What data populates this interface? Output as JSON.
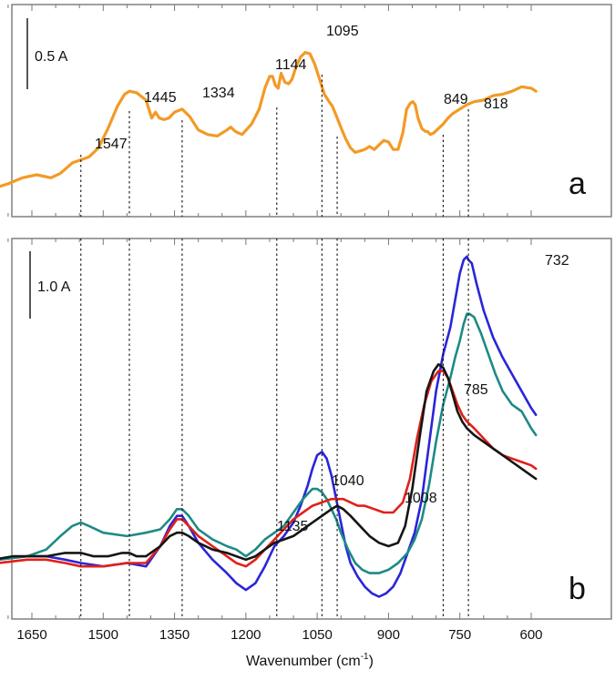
{
  "chart_data": [
    {
      "type": "line",
      "panel_letter": "a",
      "scale_bar_label": "0.5 A",
      "xlim": [
        1780,
        590
      ],
      "ylim": [
        0,
        1
      ],
      "x_reversed": true,
      "series": [
        {
          "color": "#f29a26",
          "x": [
            1780,
            1740,
            1700,
            1670,
            1640,
            1610,
            1590,
            1565,
            1547,
            1530,
            1510,
            1490,
            1470,
            1455,
            1445,
            1430,
            1410,
            1398,
            1390,
            1382,
            1372,
            1362,
            1350,
            1334,
            1318,
            1300,
            1280,
            1260,
            1240,
            1232,
            1222,
            1208,
            1188,
            1172,
            1160,
            1150,
            1144,
            1138,
            1132,
            1126,
            1118,
            1110,
            1103,
            1095,
            1085,
            1075,
            1065,
            1055,
            1045,
            1035,
            1025,
            1018,
            1008,
            998,
            990,
            980,
            970,
            960,
            950,
            940,
            930,
            920,
            910,
            900,
            890,
            880,
            870,
            862,
            854,
            849,
            844,
            838,
            830,
            822,
            818,
            812,
            805,
            795,
            785,
            775,
            765,
            755,
            745,
            735,
            720,
            700,
            680,
            660,
            640,
            620,
            600,
            590
          ],
          "y": [
            0.02,
            0.04,
            0.08,
            0.12,
            0.14,
            0.12,
            0.15,
            0.22,
            0.24,
            0.26,
            0.32,
            0.45,
            0.6,
            0.68,
            0.7,
            0.69,
            0.64,
            0.52,
            0.56,
            0.52,
            0.51,
            0.52,
            0.56,
            0.58,
            0.53,
            0.44,
            0.41,
            0.4,
            0.44,
            0.46,
            0.43,
            0.41,
            0.48,
            0.58,
            0.72,
            0.8,
            0.8,
            0.74,
            0.72,
            0.82,
            0.76,
            0.75,
            0.78,
            0.86,
            0.93,
            0.96,
            0.95,
            0.88,
            0.78,
            0.68,
            0.63,
            0.6,
            0.52,
            0.44,
            0.38,
            0.32,
            0.29,
            0.3,
            0.31,
            0.33,
            0.31,
            0.34,
            0.37,
            0.36,
            0.31,
            0.31,
            0.42,
            0.58,
            0.62,
            0.63,
            0.61,
            0.52,
            0.45,
            0.43,
            0.43,
            0.41,
            0.42,
            0.45,
            0.48,
            0.52,
            0.55,
            0.57,
            0.59,
            0.61,
            0.63,
            0.64,
            0.67,
            0.68,
            0.7,
            0.73,
            0.72,
            0.7
          ]
        }
      ],
      "annotations": [
        {
          "text": "1547",
          "x": 1547,
          "y": 0.24
        },
        {
          "text": "1445",
          "x": 1445,
          "y": 0.7
        },
        {
          "text": "1334",
          "x": 1334,
          "y": 0.58
        },
        {
          "text": "1144",
          "x": 1144,
          "y": 0.8
        },
        {
          "text": "1095",
          "x": 1095,
          "y": 0.96
        },
        {
          "text": "849",
          "x": 849,
          "y": 0.63
        },
        {
          "text": "818",
          "x": 818,
          "y": 0.43
        }
      ]
    },
    {
      "type": "line",
      "panel_letter": "b",
      "scale_bar_label": "1.0 A",
      "xlabel": "Wavenumber (cm",
      "xlabel_sup": "-1",
      "xlabel_close": ")",
      "xlim": [
        1780,
        590
      ],
      "ylim": [
        0,
        1
      ],
      "x_reversed": true,
      "x_ticks": [
        1650,
        1500,
        1350,
        1200,
        1050,
        900,
        750,
        600
      ],
      "x_tick_labels": [
        "1650",
        "1500",
        "1350",
        "1200",
        "1050",
        "900",
        "750",
        "600"
      ],
      "series": [
        {
          "color": "#2a25d8",
          "x": [
            1780,
            1720,
            1660,
            1620,
            1580,
            1547,
            1500,
            1450,
            1410,
            1380,
            1360,
            1345,
            1334,
            1320,
            1300,
            1270,
            1240,
            1220,
            1200,
            1180,
            1160,
            1140,
            1120,
            1100,
            1085,
            1070,
            1060,
            1050,
            1040,
            1030,
            1020,
            1010,
            1000,
            990,
            980,
            965,
            950,
            935,
            920,
            905,
            890,
            875,
            860,
            845,
            830,
            815,
            800,
            785,
            770,
            760,
            750,
            742,
            735,
            732,
            725,
            715,
            700,
            680,
            660,
            640,
            620,
            600,
            590
          ],
          "y": [
            0.05,
            0.06,
            0.07,
            0.07,
            0.06,
            0.05,
            0.04,
            0.05,
            0.04,
            0.1,
            0.16,
            0.19,
            0.19,
            0.16,
            0.11,
            0.06,
            0.02,
            -0.01,
            -0.03,
            -0.01,
            0.04,
            0.1,
            0.13,
            0.17,
            0.22,
            0.28,
            0.33,
            0.37,
            0.38,
            0.36,
            0.31,
            0.24,
            0.17,
            0.1,
            0.05,
            0.01,
            -0.02,
            -0.04,
            -0.05,
            -0.04,
            -0.02,
            0.02,
            0.08,
            0.14,
            0.24,
            0.4,
            0.56,
            0.67,
            0.75,
            0.83,
            0.91,
            0.95,
            0.96,
            0.95,
            0.94,
            0.88,
            0.8,
            0.72,
            0.66,
            0.61,
            0.56,
            0.51,
            0.49
          ]
        },
        {
          "color": "#1e8a86",
          "x": [
            1780,
            1720,
            1660,
            1620,
            1590,
            1565,
            1547,
            1530,
            1500,
            1450,
            1410,
            1380,
            1360,
            1345,
            1334,
            1320,
            1300,
            1270,
            1240,
            1220,
            1200,
            1180,
            1160,
            1140,
            1120,
            1100,
            1080,
            1060,
            1050,
            1040,
            1030,
            1020,
            1010,
            1000,
            985,
            970,
            955,
            940,
            920,
            900,
            880,
            860,
            845,
            830,
            815,
            800,
            785,
            770,
            760,
            750,
            742,
            735,
            730,
            720,
            705,
            690,
            675,
            660,
            640,
            620,
            600,
            590
          ],
          "y": [
            0.05,
            0.06,
            0.07,
            0.09,
            0.13,
            0.16,
            0.17,
            0.16,
            0.14,
            0.13,
            0.14,
            0.15,
            0.18,
            0.21,
            0.21,
            0.19,
            0.15,
            0.12,
            0.1,
            0.09,
            0.07,
            0.09,
            0.12,
            0.14,
            0.16,
            0.2,
            0.24,
            0.27,
            0.27,
            0.26,
            0.24,
            0.21,
            0.18,
            0.14,
            0.09,
            0.05,
            0.03,
            0.02,
            0.02,
            0.03,
            0.05,
            0.08,
            0.12,
            0.18,
            0.28,
            0.41,
            0.52,
            0.6,
            0.66,
            0.71,
            0.76,
            0.79,
            0.79,
            0.78,
            0.73,
            0.67,
            0.61,
            0.56,
            0.52,
            0.5,
            0.45,
            0.43
          ]
        },
        {
          "color": "#e0201a",
          "x": [
            1780,
            1720,
            1660,
            1620,
            1580,
            1547,
            1500,
            1450,
            1410,
            1380,
            1360,
            1345,
            1334,
            1320,
            1300,
            1270,
            1240,
            1220,
            1200,
            1180,
            1160,
            1140,
            1120,
            1100,
            1080,
            1060,
            1040,
            1020,
            1008,
            995,
            980,
            965,
            950,
            930,
            910,
            890,
            870,
            855,
            840,
            825,
            810,
            795,
            785,
            775,
            765,
            755,
            745,
            735,
            720,
            700,
            680,
            660,
            640,
            620,
            600,
            590
          ],
          "y": [
            0.05,
            0.05,
            0.06,
            0.06,
            0.05,
            0.04,
            0.04,
            0.05,
            0.05,
            0.1,
            0.15,
            0.18,
            0.18,
            0.16,
            0.13,
            0.1,
            0.07,
            0.05,
            0.04,
            0.06,
            0.09,
            0.12,
            0.15,
            0.18,
            0.2,
            0.22,
            0.23,
            0.24,
            0.24,
            0.24,
            0.23,
            0.22,
            0.22,
            0.21,
            0.2,
            0.2,
            0.23,
            0.3,
            0.42,
            0.52,
            0.59,
            0.62,
            0.62,
            0.6,
            0.56,
            0.52,
            0.49,
            0.47,
            0.45,
            0.42,
            0.39,
            0.37,
            0.36,
            0.35,
            0.34,
            0.33
          ]
        },
        {
          "color": "#151515",
          "x": [
            1780,
            1730,
            1690,
            1660,
            1620,
            1580,
            1547,
            1520,
            1490,
            1460,
            1445,
            1430,
            1410,
            1380,
            1360,
            1345,
            1334,
            1320,
            1300,
            1270,
            1240,
            1220,
            1200,
            1180,
            1160,
            1140,
            1120,
            1100,
            1080,
            1060,
            1040,
            1020,
            1008,
            995,
            980,
            960,
            940,
            920,
            900,
            880,
            865,
            850,
            835,
            820,
            805,
            795,
            785,
            775,
            765,
            755,
            745,
            735,
            720,
            700,
            680,
            660,
            640,
            620,
            600,
            590
          ],
          "y": [
            0.05,
            0.06,
            0.07,
            0.07,
            0.07,
            0.08,
            0.08,
            0.07,
            0.07,
            0.08,
            0.08,
            0.07,
            0.07,
            0.1,
            0.13,
            0.14,
            0.14,
            0.13,
            0.11,
            0.09,
            0.08,
            0.07,
            0.06,
            0.07,
            0.09,
            0.11,
            0.12,
            0.13,
            0.15,
            0.17,
            0.19,
            0.21,
            0.22,
            0.21,
            0.19,
            0.16,
            0.13,
            0.11,
            0.1,
            0.11,
            0.16,
            0.27,
            0.42,
            0.56,
            0.62,
            0.64,
            0.63,
            0.6,
            0.55,
            0.5,
            0.47,
            0.45,
            0.43,
            0.41,
            0.39,
            0.37,
            0.35,
            0.33,
            0.31,
            0.3
          ]
        }
      ],
      "annotations": [
        {
          "text": "1135",
          "x": 1135,
          "y": 0.14
        },
        {
          "text": "1040",
          "x": 1040,
          "y": 0.38
        },
        {
          "text": "1008",
          "x": 1008,
          "y": 0.24
        },
        {
          "text": "785",
          "x": 785,
          "y": 0.64
        },
        {
          "text": "732",
          "x": 732,
          "y": 0.96
        }
      ],
      "guide_lines_x": [
        1547,
        1445,
        1334,
        1135,
        1040,
        1008,
        785,
        732
      ]
    }
  ]
}
